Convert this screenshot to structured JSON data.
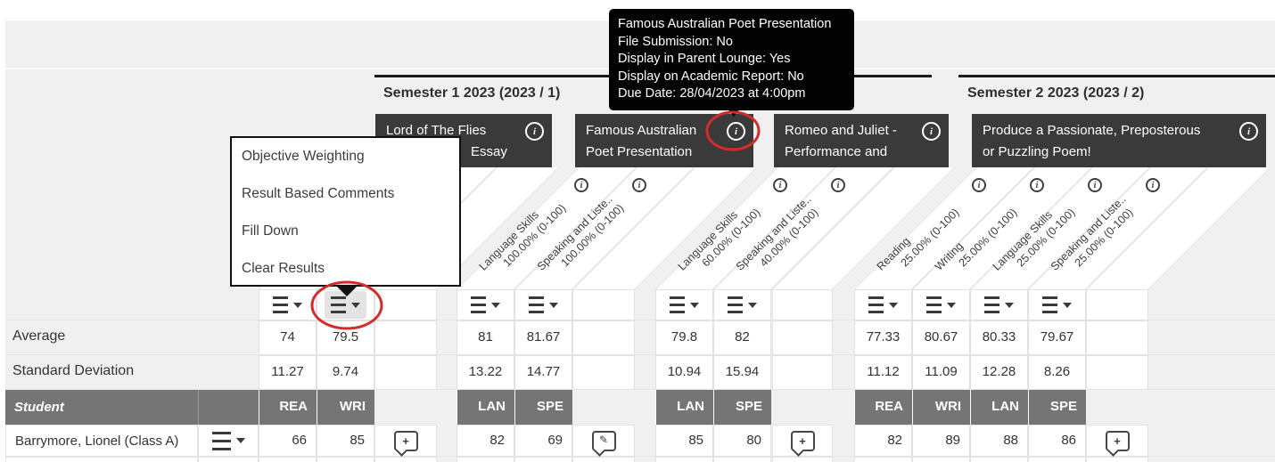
{
  "colors": {
    "annotation_red": "#d42a2a",
    "assessment_header_dark": "#3a3a3a",
    "subheader_gray": "#757575",
    "tooltip_black": "#030303"
  },
  "icons": {
    "info_glyph": "i",
    "add_glyph": "+",
    "edit_glyph": "✎"
  },
  "tooltip": {
    "lines": [
      "Famous Australian Poet Presentation",
      "File Submission: No",
      "Display in Parent Lounge: Yes",
      "Display on Academic Report: No",
      "Due Date: 28/04/2023 at 4:00pm"
    ]
  },
  "menu": {
    "items": [
      "Objective Weighting",
      "Result Based Comments",
      "Fill Down",
      "Clear Results"
    ]
  },
  "semesters": [
    {
      "label": "Semester 1 2023 (2023 / 1)"
    },
    {
      "label": "Semester 2 2023 (2023 / 2)"
    }
  ],
  "rows": {
    "average_label": "Average",
    "stdev_label": "Standard Deviation",
    "student_header": "Student"
  },
  "student": {
    "name": "Barrymore, Lionel (Class A)"
  },
  "assessments": [
    {
      "semester": "Semester 1 2023 (2023 / 1)",
      "title_line1": "Lord of The Flies",
      "title_line2": "Essay",
      "comment_icon": "add-comment-icon",
      "columns": [
        {
          "code": "REA",
          "average": "74",
          "stdev": "11.27",
          "result": "66"
        },
        {
          "code": "WRI",
          "average": "79.5",
          "stdev": "9.74",
          "result": "85"
        }
      ]
    },
    {
      "semester": "Semester 1 2023 (2023 / 1)",
      "title_line1": "Famous Australian",
      "title_line2": "Poet Presentation",
      "comment_icon": "edit-comment-icon",
      "columns": [
        {
          "code": "LAN",
          "objective": "Language Skills",
          "weight": "100.00% (0-100)",
          "average": "81",
          "stdev": "13.22",
          "result": "82"
        },
        {
          "code": "SPE",
          "objective": "Speaking and Liste..",
          "weight": "100.00% (0-100)",
          "average": "81.67",
          "stdev": "14.77",
          "result": "69"
        }
      ]
    },
    {
      "semester": "Semester 1 2023 (2023 / 1)",
      "title_line1": "Romeo and Juliet -",
      "title_line2": "Performance and",
      "comment_icon": "add-comment-icon",
      "columns": [
        {
          "code": "LAN",
          "objective": "Language Skills",
          "weight": "60.00% (0-100)",
          "average": "79.8",
          "stdev": "10.94",
          "result": "85"
        },
        {
          "code": "SPE",
          "objective": "Speaking and Liste..",
          "weight": "40.00% (0-100)",
          "average": "82",
          "stdev": "15.94",
          "result": "80"
        }
      ]
    },
    {
      "semester": "Semester 2 2023 (2023 / 2)",
      "title_line1": "Produce a Passionate, Preposterous",
      "title_line2": "or Puzzling Poem!",
      "comment_icon": "add-comment-icon",
      "columns": [
        {
          "code": "REA",
          "objective": "Reading",
          "weight": "25.00% (0-100)",
          "average": "77.33",
          "stdev": "11.12",
          "result": "82"
        },
        {
          "code": "WRI",
          "objective": "Writing",
          "weight": "25.00% (0-100)",
          "average": "80.67",
          "stdev": "11.09",
          "result": "89"
        },
        {
          "code": "LAN",
          "objective": "Language Skills",
          "weight": "25.00% (0-100)",
          "average": "80.33",
          "stdev": "12.28",
          "result": "88"
        },
        {
          "code": "SPE",
          "objective": "Speaking and Liste..",
          "weight": "25.00% (0-100)",
          "average": "79.67",
          "stdev": "8.26",
          "result": "86"
        }
      ]
    }
  ]
}
